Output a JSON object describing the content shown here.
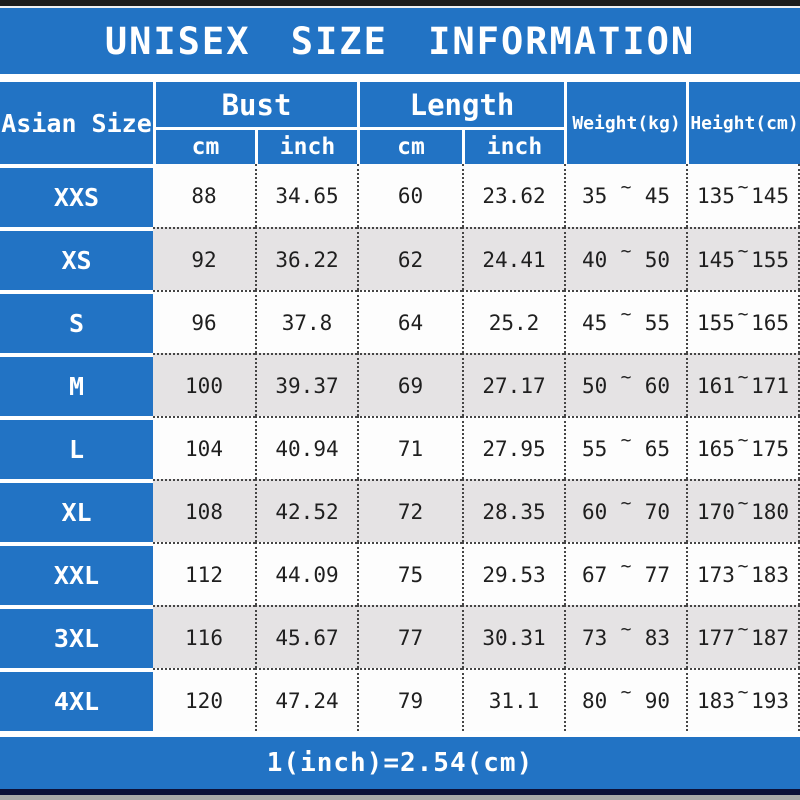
{
  "title": "UNISEX SIZE INFORMATION",
  "colors": {
    "blue": "#2273c4",
    "row": "#fdfdfd",
    "row_alt": "#e5e3e4",
    "dot": "#454545",
    "text": "#1f1f1f",
    "top_bar": "#1d1d1d",
    "bottom_bar": "#0c1038"
  },
  "header": {
    "size_col": "Asian Size",
    "bust": "Bust",
    "length": "Length",
    "cm": "cm",
    "inch": "inch",
    "weight": "Weight(kg)",
    "height": "Height(cm)"
  },
  "table": {
    "tilde": "~",
    "rows": [
      {
        "size": "XXS",
        "bust_cm": "88",
        "bust_inch": "34.65",
        "length_cm": "60",
        "length_inch": "23.62",
        "weight_min": "35",
        "weight_max": "45",
        "height_min": "135",
        "height_max": "145"
      },
      {
        "size": "XS",
        "bust_cm": "92",
        "bust_inch": "36.22",
        "length_cm": "62",
        "length_inch": "24.41",
        "weight_min": "40",
        "weight_max": "50",
        "height_min": "145",
        "height_max": "155"
      },
      {
        "size": "S",
        "bust_cm": "96",
        "bust_inch": "37.8",
        "length_cm": "64",
        "length_inch": "25.2",
        "weight_min": "45",
        "weight_max": "55",
        "height_min": "155",
        "height_max": "165"
      },
      {
        "size": "M",
        "bust_cm": "100",
        "bust_inch": "39.37",
        "length_cm": "69",
        "length_inch": "27.17",
        "weight_min": "50",
        "weight_max": "60",
        "height_min": "161",
        "height_max": "171"
      },
      {
        "size": "L",
        "bust_cm": "104",
        "bust_inch": "40.94",
        "length_cm": "71",
        "length_inch": "27.95",
        "weight_min": "55",
        "weight_max": "65",
        "height_min": "165",
        "height_max": "175"
      },
      {
        "size": "XL",
        "bust_cm": "108",
        "bust_inch": "42.52",
        "length_cm": "72",
        "length_inch": "28.35",
        "weight_min": "60",
        "weight_max": "70",
        "height_min": "170",
        "height_max": "180"
      },
      {
        "size": "XXL",
        "bust_cm": "112",
        "bust_inch": "44.09",
        "length_cm": "75",
        "length_inch": "29.53",
        "weight_min": "67",
        "weight_max": "77",
        "height_min": "173",
        "height_max": "183"
      },
      {
        "size": "3XL",
        "bust_cm": "116",
        "bust_inch": "45.67",
        "length_cm": "77",
        "length_inch": "30.31",
        "weight_min": "73",
        "weight_max": "83",
        "height_min": "177",
        "height_max": "187"
      },
      {
        "size": "4XL",
        "bust_cm": "120",
        "bust_inch": "47.24",
        "length_cm": "79",
        "length_inch": "31.1",
        "weight_min": "80",
        "weight_max": "90",
        "height_min": "183",
        "height_max": "193"
      }
    ]
  },
  "footer": "1(inch)=2.54(cm)"
}
